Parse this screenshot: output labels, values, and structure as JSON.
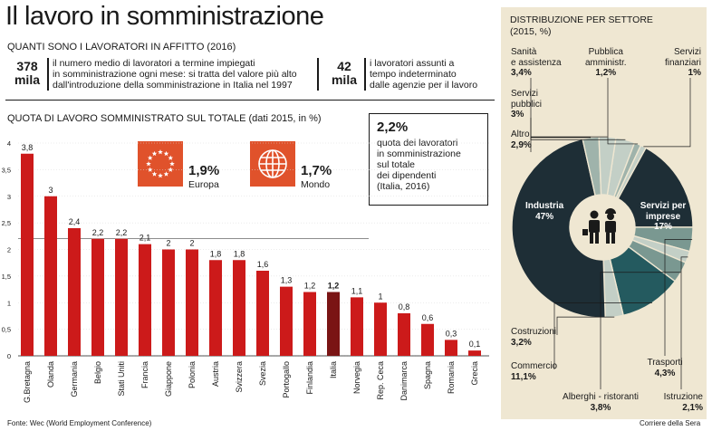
{
  "title": "Il lavoro in somministrazione",
  "subtitle": "QUANTI SONO I LAVORATORI IN AFFITTO (2016)",
  "stats": [
    {
      "number": "378",
      "unit": "mila",
      "text": [
        "il numero medio di lavoratori a termine impiegati",
        "in somministrazione ogni mese: si tratta del valore più alto",
        "dall'introduzione della somministrazione in Italia nel 1997"
      ]
    },
    {
      "number": "42",
      "unit": "mila",
      "text": [
        "i lavoratori assunti a",
        "tempo indeterminato",
        "dalle agenzie per il lavoro"
      ]
    }
  ],
  "chart_title": "QUOTA DI LAVORO SOMMINISTRATO SUL TOTALE (dati 2015, in %)",
  "callouts": {
    "europa": {
      "value": "1,9%",
      "label": "Europa"
    },
    "mondo": {
      "value": "1,7%",
      "label": "Mondo"
    }
  },
  "note": {
    "value": "2,2%",
    "lines": [
      "quota dei lavoratori",
      "in somministrazione",
      "sul totale",
      "dei dipendenti",
      "(Italia, 2016)"
    ]
  },
  "colors": {
    "bar": "#cc1a1a",
    "highlight": "#7a1414",
    "icon_bg": "#e0522b",
    "panel": "#efe7d2",
    "pie_dark": "#1e2e36",
    "pie_teal": "#245a5f",
    "pie_light": "#c3cfc6",
    "pie_mid": "#7a9891"
  },
  "chart_data": [
    {
      "type": "bar",
      "title": "QUOTA DI LAVORO SOMMINISTRATO SUL TOTALE (dati 2015, in %)",
      "categories": [
        "G.Bretagna",
        "Olanda",
        "Germania",
        "Belgio",
        "Stati Uniti",
        "Francia",
        "Giappone",
        "Polonia",
        "Austria",
        "Svizzera",
        "Svezia",
        "Portogallo",
        "Finlandia",
        "Italia",
        "Norvegia",
        "Rep. Ceca",
        "Danimarca",
        "Spagna",
        "Romania",
        "Grecia"
      ],
      "values": [
        3.8,
        3,
        2.4,
        2.2,
        2.2,
        2.1,
        2,
        2,
        1.8,
        1.8,
        1.6,
        1.3,
        1.2,
        1.2,
        1.1,
        1,
        0.8,
        0.6,
        0.3,
        0.1
      ],
      "value_labels": [
        "3,8",
        "3",
        "2,4",
        "2,2",
        "2,2",
        "2,1",
        "2",
        "2",
        "1,8",
        "1,8",
        "1,6",
        "1,3",
        "1,2",
        "1,2",
        "1,1",
        "1",
        "0,8",
        "0,6",
        "0,3",
        "0,1"
      ],
      "highlight": "Italia",
      "yticks": [
        "0",
        "0,5",
        "1",
        "1,5",
        "2",
        "2,5",
        "3",
        "3,5",
        "4"
      ],
      "ylim": [
        0,
        4
      ]
    },
    {
      "type": "pie",
      "title": "DISTRIBUZIONE PER SETTORE",
      "subtitle": "(2015, %)",
      "slices": [
        {
          "name": "Sanità e assistenza",
          "lines": [
            "Sanità",
            "e assistenza"
          ],
          "label": "3,4%",
          "value": 3.4,
          "color": "#c3cfc6"
        },
        {
          "name": "Pubblica amministr.",
          "lines": [
            "Pubblica",
            "amministr."
          ],
          "label": "1,2%",
          "value": 1.2,
          "color": "#9fb3ab"
        },
        {
          "name": "Servizi finanziari",
          "lines": [
            "Servizi",
            "finanziari"
          ],
          "label": "1%",
          "value": 1,
          "color": "#c3cfc6"
        },
        {
          "name": "Servizi per imprese",
          "lines": [
            "Servizi per",
            "imprese"
          ],
          "label": "17%",
          "value": 17,
          "color": "#1e2e36"
        },
        {
          "name": "Trasporti",
          "lines": [
            "Trasporti"
          ],
          "label": "4,3%",
          "value": 4.3,
          "color": "#7a9891"
        },
        {
          "name": "Istruzione",
          "lines": [
            "Istruzione"
          ],
          "label": "2,1%",
          "value": 2.1,
          "color": "#c3cfc6"
        },
        {
          "name": "Alberghi - ristoranti",
          "lines": [
            "Alberghi - ristoranti"
          ],
          "label": "3,8%",
          "value": 3.8,
          "color": "#7a9891"
        },
        {
          "name": "Commercio",
          "lines": [
            "Commercio"
          ],
          "label": "11,1%",
          "value": 11.1,
          "color": "#245a5f"
        },
        {
          "name": "Costruzioni",
          "lines": [
            "Costruzioni"
          ],
          "label": "3,2%",
          "value": 3.2,
          "color": "#c3cfc6"
        },
        {
          "name": "Industria",
          "lines": [
            "Industria"
          ],
          "label": "47%",
          "value": 47,
          "color": "#1e2e36"
        },
        {
          "name": "Altro",
          "lines": [
            "Altro"
          ],
          "label": "2,9%",
          "value": 2.9,
          "color": "#9fb3ab"
        },
        {
          "name": "Servizi pubblici",
          "lines": [
            "Servizi",
            "pubblici"
          ],
          "label": "3%",
          "value": 3,
          "color": "#c3cfc6"
        }
      ]
    }
  ],
  "footer": {
    "source": "Fonte: Wec (World Employment Conference)",
    "credit": "Corriere della Sera"
  }
}
